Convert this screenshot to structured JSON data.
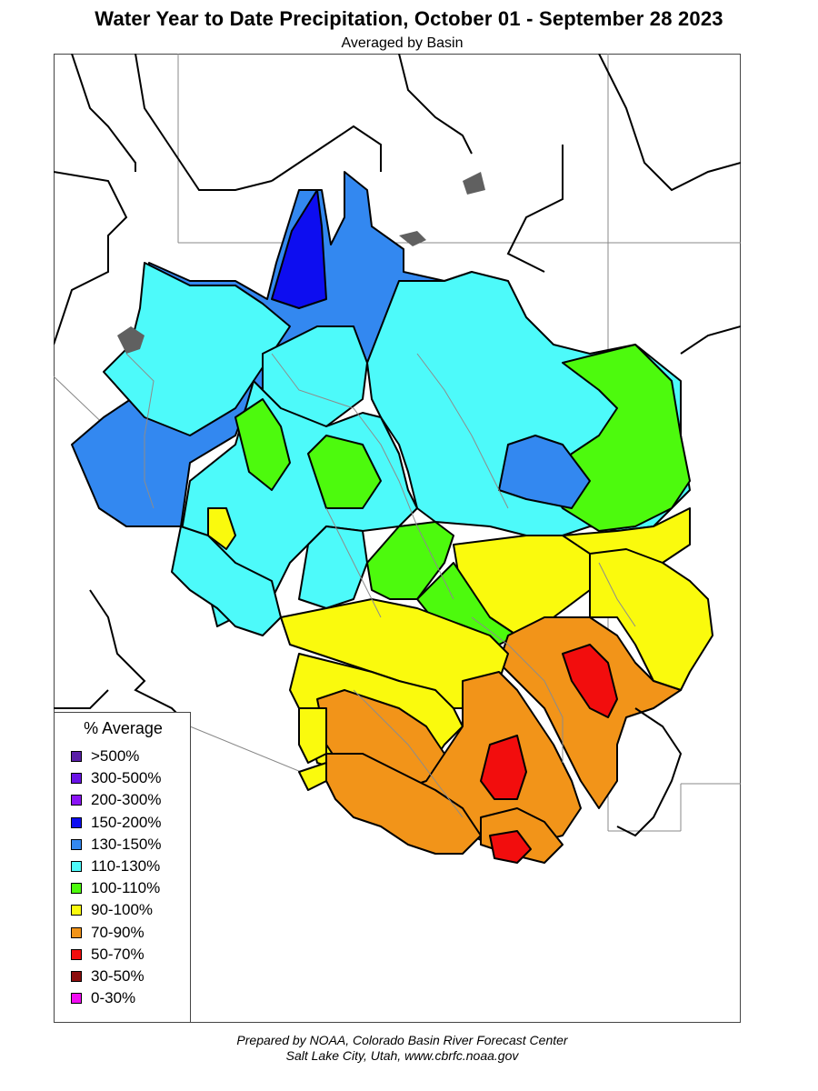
{
  "header": {
    "title": "Water Year to Date Precipitation, October 01  - September 28 2023",
    "subtitle": "Averaged by Basin"
  },
  "legend": {
    "title": "% Average",
    "items": [
      {
        "label": ">500%",
        "color": "#5a1fa8"
      },
      {
        "label": "300-500%",
        "color": "#6a14e6"
      },
      {
        "label": "200-300%",
        "color": "#8a14f5"
      },
      {
        "label": "150-200%",
        "color": "#0d0df0"
      },
      {
        "label": "130-150%",
        "color": "#3388f0"
      },
      {
        "label": "110-130%",
        "color": "#4dfafa"
      },
      {
        "label": "100-110%",
        "color": "#4dfa0d"
      },
      {
        "label": "90-100%",
        "color": "#fafa0d"
      },
      {
        "label": "70-90%",
        "color": "#f29419"
      },
      {
        "label": "50-70%",
        "color": "#f20d0d"
      },
      {
        "label": "30-50%",
        "color": "#8c0d0d"
      },
      {
        "label": "0-30%",
        "color": "#f20df2"
      }
    ]
  },
  "footer": {
    "line1": "Prepared by NOAA, Colorado Basin River Forecast Center",
    "line2": "Salt Lake City, Utah, www.cbrfc.noaa.gov"
  }
}
